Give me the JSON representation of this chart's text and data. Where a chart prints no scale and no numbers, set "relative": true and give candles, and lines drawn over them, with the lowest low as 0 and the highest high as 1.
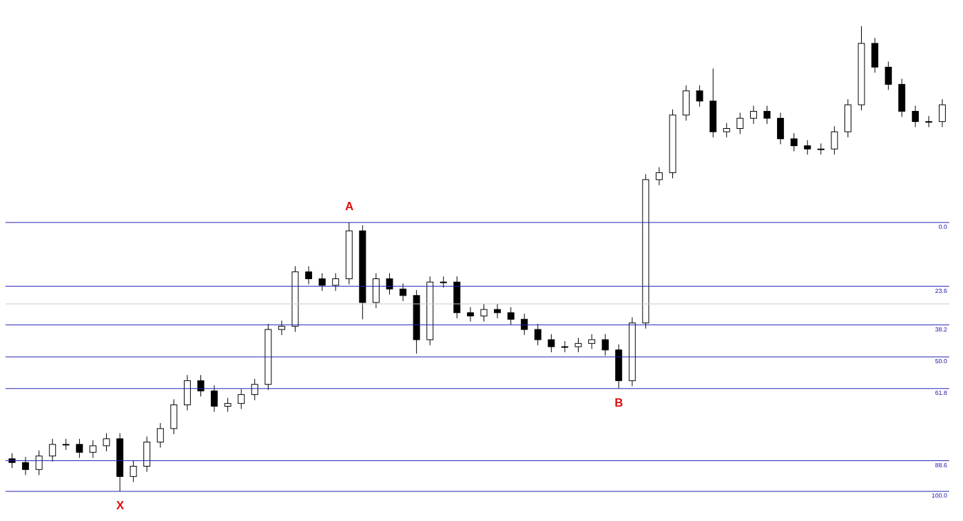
{
  "chart_data": {
    "type": "candlestick",
    "relative": true,
    "color": "#000000",
    "categories": [
      null,
      null,
      null,
      null,
      null,
      null,
      null,
      null,
      null,
      null,
      null,
      null,
      null,
      null,
      null,
      null,
      null,
      null,
      null,
      null,
      null,
      null,
      null,
      null,
      null,
      null,
      null,
      null,
      null,
      null,
      null,
      null,
      null,
      null,
      null,
      null,
      null,
      null,
      null,
      null,
      null,
      null,
      null,
      null,
      null,
      null,
      null,
      null,
      null,
      null,
      null,
      null,
      null,
      null,
      null,
      null,
      null,
      null,
      null,
      null,
      null,
      null,
      null,
      null,
      null,
      null,
      null,
      null,
      null,
      null
    ],
    "ohlc": [
      [
        0.07,
        0.082,
        0.05,
        0.062
      ],
      [
        0.062,
        0.074,
        0.035,
        0.047
      ],
      [
        0.047,
        0.088,
        0.035,
        0.076
      ],
      [
        0.076,
        0.113,
        0.064,
        0.101
      ],
      [
        0.101,
        0.113,
        0.089,
        0.101
      ],
      [
        0.101,
        0.113,
        0.072,
        0.084
      ],
      [
        0.084,
        0.11,
        0.072,
        0.098
      ],
      [
        0.098,
        0.125,
        0.086,
        0.113
      ],
      [
        0.113,
        0.125,
        0.0,
        0.032
      ],
      [
        0.032,
        0.066,
        0.02,
        0.054
      ],
      [
        0.054,
        0.118,
        0.042,
        0.106
      ],
      [
        0.106,
        0.147,
        0.094,
        0.135
      ],
      [
        0.135,
        0.198,
        0.123,
        0.186
      ],
      [
        0.186,
        0.25,
        0.174,
        0.238
      ],
      [
        0.238,
        0.25,
        0.204,
        0.216
      ],
      [
        0.216,
        0.228,
        0.171,
        0.183
      ],
      [
        0.183,
        0.201,
        0.171,
        0.189
      ],
      [
        0.189,
        0.22,
        0.177,
        0.208
      ],
      [
        0.208,
        0.242,
        0.196,
        0.23
      ],
      [
        0.23,
        0.36,
        0.218,
        0.348
      ],
      [
        0.348,
        0.367,
        0.336,
        0.355
      ],
      [
        0.355,
        0.484,
        0.343,
        0.472
      ],
      [
        0.472,
        0.484,
        0.445,
        0.457
      ],
      [
        0.457,
        0.469,
        0.431,
        0.443
      ],
      [
        0.443,
        0.469,
        0.431,
        0.457
      ],
      [
        0.457,
        0.578,
        0.445,
        0.56
      ],
      [
        0.56,
        0.572,
        0.37,
        0.406
      ],
      [
        0.406,
        0.469,
        0.394,
        0.457
      ],
      [
        0.457,
        0.469,
        0.423,
        0.435
      ],
      [
        0.435,
        0.447,
        0.409,
        0.421
      ],
      [
        0.421,
        0.433,
        0.296,
        0.326
      ],
      [
        0.326,
        0.462,
        0.314,
        0.45
      ],
      [
        0.45,
        0.462,
        0.438,
        0.45
      ],
      [
        0.45,
        0.462,
        0.372,
        0.384
      ],
      [
        0.384,
        0.396,
        0.365,
        0.377
      ],
      [
        0.377,
        0.403,
        0.365,
        0.391
      ],
      [
        0.391,
        0.403,
        0.372,
        0.384
      ],
      [
        0.384,
        0.396,
        0.358,
        0.37
      ],
      [
        0.37,
        0.382,
        0.336,
        0.348
      ],
      [
        0.348,
        0.36,
        0.314,
        0.326
      ],
      [
        0.326,
        0.338,
        0.299,
        0.311
      ],
      [
        0.311,
        0.323,
        0.299,
        0.311
      ],
      [
        0.311,
        0.33,
        0.299,
        0.318
      ],
      [
        0.318,
        0.338,
        0.306,
        0.326
      ],
      [
        0.326,
        0.338,
        0.292,
        0.304
      ],
      [
        0.304,
        0.316,
        0.221,
        0.238
      ],
      [
        0.238,
        0.374,
        0.226,
        0.362
      ],
      [
        0.362,
        0.682,
        0.35,
        0.67
      ],
      [
        0.67,
        0.697,
        0.658,
        0.685
      ],
      [
        0.685,
        0.821,
        0.673,
        0.809
      ],
      [
        0.809,
        0.873,
        0.797,
        0.861
      ],
      [
        0.861,
        0.873,
        0.827,
        0.839
      ],
      [
        0.839,
        0.909,
        0.761,
        0.773
      ],
      [
        0.773,
        0.792,
        0.761,
        0.78
      ],
      [
        0.78,
        0.814,
        0.768,
        0.802
      ],
      [
        0.802,
        0.829,
        0.79,
        0.817
      ],
      [
        0.817,
        0.829,
        0.79,
        0.802
      ],
      [
        0.802,
        0.814,
        0.746,
        0.758
      ],
      [
        0.758,
        0.77,
        0.731,
        0.743
      ],
      [
        0.743,
        0.755,
        0.724,
        0.736
      ],
      [
        0.736,
        0.748,
        0.724,
        0.736
      ],
      [
        0.736,
        0.785,
        0.724,
        0.773
      ],
      [
        0.773,
        0.843,
        0.761,
        0.831
      ],
      [
        0.831,
        1.0,
        0.819,
        0.963
      ],
      [
        0.963,
        0.975,
        0.9,
        0.912
      ],
      [
        0.912,
        0.924,
        0.863,
        0.875
      ],
      [
        0.875,
        0.887,
        0.805,
        0.817
      ],
      [
        0.817,
        0.829,
        0.783,
        0.795
      ],
      [
        0.795,
        0.807,
        0.783,
        0.795
      ],
      [
        0.795,
        0.843,
        0.783,
        0.831
      ]
    ],
    "ref_lines": [
      {
        "axis": "y",
        "value": 0.578,
        "color": "#2020b0"
      },
      {
        "axis": "y",
        "value": 0.441,
        "color": "#2020b0"
      },
      {
        "axis": "y",
        "value": 0.358,
        "color": "#2020b0"
      },
      {
        "axis": "y",
        "value": 0.289,
        "color": "#2020b0"
      },
      {
        "axis": "y",
        "value": 0.221,
        "color": "#2020b0"
      },
      {
        "axis": "y",
        "value": 0.066,
        "color": "#2020b0"
      },
      {
        "axis": "y",
        "value": 0,
        "color": "#2020b0"
      },
      {
        "axis": "y",
        "value": 0.403,
        "color": "#c8c8c8"
      }
    ],
    "annotations": [
      {
        "text": "A",
        "y": 0.578
      },
      {
        "text": "B",
        "y": 0.221
      },
      {
        "text": "X",
        "y": 0
      },
      {
        "text": "0.0",
        "y": 0.578
      },
      {
        "text": "23.6",
        "y": 0.441
      },
      {
        "text": "38.2",
        "y": 0.358
      },
      {
        "text": "50.0",
        "y": 0.289
      },
      {
        "text": "61.8",
        "y": 0.221
      },
      {
        "text": "88.6",
        "y": 0.066
      },
      {
        "text": "100.0",
        "y": 0
      }
    ]
  }
}
